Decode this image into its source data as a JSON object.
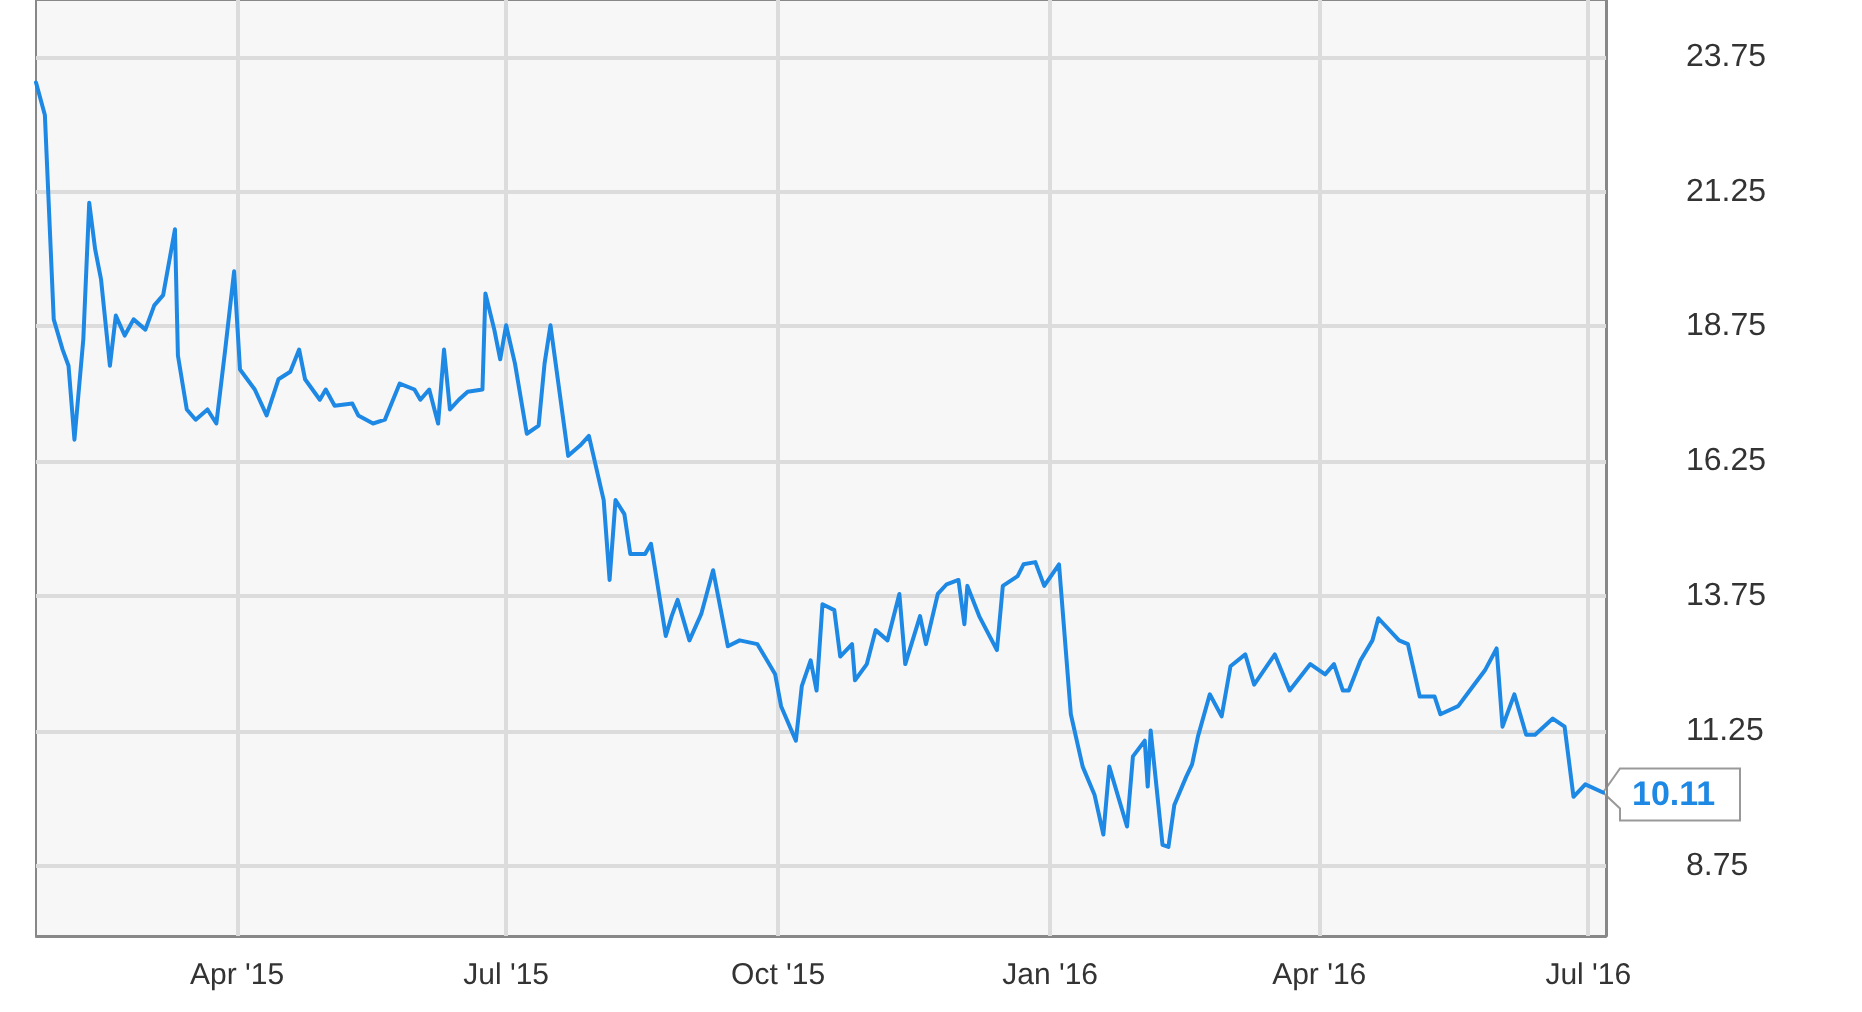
{
  "chart_data": {
    "type": "line",
    "x": [
      "2015-01-23",
      "2015-01-26",
      "2015-01-29",
      "2015-02-01",
      "2015-02-03",
      "2015-02-05",
      "2015-02-08",
      "2015-02-10",
      "2015-02-12",
      "2015-02-14",
      "2015-02-17",
      "2015-02-19",
      "2015-02-22",
      "2015-02-25",
      "2015-03-01",
      "2015-03-04",
      "2015-03-07",
      "2015-03-11",
      "2015-03-12",
      "2015-03-15",
      "2015-03-18",
      "2015-03-22",
      "2015-03-25",
      "2015-03-28",
      "2015-03-31",
      "2015-04-02",
      "2015-04-07",
      "2015-04-11",
      "2015-04-15",
      "2015-04-19",
      "2015-04-22",
      "2015-04-24",
      "2015-04-29",
      "2015-05-01",
      "2015-05-04",
      "2015-05-10",
      "2015-05-12",
      "2015-05-17",
      "2015-05-21",
      "2015-05-26",
      "2015-05-31",
      "2015-06-02",
      "2015-06-05",
      "2015-06-08",
      "2015-06-10",
      "2015-06-12",
      "2015-06-15",
      "2015-06-18",
      "2015-06-23",
      "2015-06-24",
      "2015-06-27",
      "2015-06-29",
      "2015-07-01",
      "2015-07-04",
      "2015-07-08",
      "2015-07-12",
      "2015-07-14",
      "2015-07-16",
      "2015-07-22",
      "2015-07-26",
      "2015-07-29",
      "2015-08-03",
      "2015-08-05",
      "2015-08-07",
      "2015-08-10",
      "2015-08-12",
      "2015-08-17",
      "2015-08-19",
      "2015-08-24",
      "2015-08-26",
      "2015-08-28",
      "2015-09-01",
      "2015-09-05",
      "2015-09-09",
      "2015-09-14",
      "2015-09-18",
      "2015-09-24",
      "2015-09-30",
      "2015-10-02",
      "2015-10-07",
      "2015-10-09",
      "2015-10-12",
      "2015-10-14",
      "2015-10-16",
      "2015-10-20",
      "2015-10-22",
      "2015-10-26",
      "2015-10-27",
      "2015-10-31",
      "2015-11-03",
      "2015-11-07",
      "2015-11-11",
      "2015-11-13",
      "2015-11-18",
      "2015-11-20",
      "2015-11-24",
      "2015-11-27",
      "2015-12-01",
      "2015-12-03",
      "2015-12-04",
      "2015-12-08",
      "2015-12-14",
      "2015-12-16",
      "2015-12-21",
      "2015-12-23",
      "2015-12-27",
      "2015-12-30",
      "2016-01-04",
      "2016-01-08",
      "2016-01-12",
      "2016-01-16",
      "2016-01-19",
      "2016-01-21",
      "2016-01-27",
      "2016-01-29",
      "2016-02-02",
      "2016-02-03",
      "2016-02-04",
      "2016-02-08",
      "2016-02-10",
      "2016-02-12",
      "2016-02-16",
      "2016-02-18",
      "2016-02-20",
      "2016-02-24",
      "2016-02-28",
      "2016-03-02",
      "2016-03-07",
      "2016-03-10",
      "2016-03-17",
      "2016-03-22",
      "2016-03-29",
      "2016-04-03",
      "2016-04-06",
      "2016-04-09",
      "2016-04-11",
      "2016-04-15",
      "2016-04-19",
      "2016-04-21",
      "2016-04-28",
      "2016-05-01",
      "2016-05-05",
      "2016-05-10",
      "2016-05-12",
      "2016-05-18",
      "2016-05-23",
      "2016-05-27",
      "2016-05-31",
      "2016-06-02",
      "2016-06-06",
      "2016-06-10",
      "2016-06-13",
      "2016-06-19",
      "2016-06-23",
      "2016-06-26",
      "2016-06-30",
      "2016-07-06"
    ],
    "series": [
      {
        "color": "#1e88e5",
        "values": [
          23.27,
          22.67,
          18.88,
          18.32,
          18.02,
          16.65,
          18.51,
          21.04,
          20.18,
          19.62,
          18.02,
          18.95,
          18.58,
          18.88,
          18.69,
          19.14,
          19.33,
          20.55,
          18.21,
          17.21,
          17.02,
          17.21,
          16.95,
          18.32,
          19.77,
          17.95,
          17.58,
          17.1,
          17.77,
          17.91,
          18.32,
          17.77,
          17.39,
          17.58,
          17.28,
          17.32,
          17.1,
          16.95,
          17.02,
          17.69,
          17.58,
          17.39,
          17.58,
          16.95,
          18.32,
          17.21,
          17.39,
          17.54,
          17.58,
          19.36,
          18.69,
          18.14,
          18.77,
          18.06,
          16.76,
          16.91,
          18.06,
          18.77,
          16.35,
          16.54,
          16.72,
          15.53,
          14.05,
          15.53,
          15.27,
          14.53,
          14.53,
          14.72,
          13.01,
          13.38,
          13.68,
          12.93,
          13.42,
          14.23,
          12.82,
          12.93,
          12.86,
          12.3,
          11.71,
          11.07,
          12.08,
          12.56,
          12.0,
          13.6,
          13.49,
          12.63,
          12.86,
          12.19,
          12.49,
          13.12,
          12.93,
          13.79,
          12.49,
          13.38,
          12.86,
          13.79,
          13.97,
          14.05,
          13.23,
          13.94,
          13.38,
          12.75,
          13.94,
          14.12,
          14.34,
          14.38,
          13.94,
          14.34,
          11.56,
          10.59,
          10.07,
          9.33,
          10.59,
          9.48,
          10.78,
          11.07,
          10.22,
          11.26,
          9.14,
          9.1,
          9.88,
          10.4,
          10.63,
          11.15,
          11.93,
          11.52,
          12.45,
          12.67,
          12.11,
          12.67,
          12.0,
          12.49,
          12.3,
          12.49,
          12.0,
          12.0,
          12.56,
          12.93,
          13.34,
          12.93,
          12.86,
          11.89,
          11.89,
          11.56,
          11.71,
          12.08,
          12.37,
          12.78,
          11.33,
          11.93,
          11.18,
          11.18,
          11.48,
          11.33,
          10.03,
          10.26,
          10.11
        ]
      }
    ],
    "xlim": [
      "2015-01-23",
      "2016-07-07"
    ],
    "xticks": [
      {
        "value": "2015-04-01",
        "label": "Apr '15"
      },
      {
        "value": "2015-07-01",
        "label": "Jul '15"
      },
      {
        "value": "2015-10-01",
        "label": "Oct '15"
      },
      {
        "value": "2016-01-01",
        "label": "Jan '16"
      },
      {
        "value": "2016-04-01",
        "label": "Apr '16"
      },
      {
        "value": "2016-07-01",
        "label": "Jul '16"
      }
    ],
    "ylim": [
      7.45,
      24.8
    ],
    "yticks": [
      {
        "value": 8.75,
        "label": "8.75"
      },
      {
        "value": 11.25,
        "label": "11.25"
      },
      {
        "value": 13.75,
        "label": "13.75"
      },
      {
        "value": 16.25,
        "label": "16.25"
      },
      {
        "value": 18.75,
        "label": "18.75"
      },
      {
        "value": 21.25,
        "label": "21.25"
      },
      {
        "value": 23.75,
        "label": "23.75"
      }
    ],
    "annotations": [
      {
        "text": "10.11",
        "x": "2016-07-06",
        "y": 10.11
      }
    ],
    "grid": true,
    "marker": "none",
    "line_style": "solid"
  }
}
